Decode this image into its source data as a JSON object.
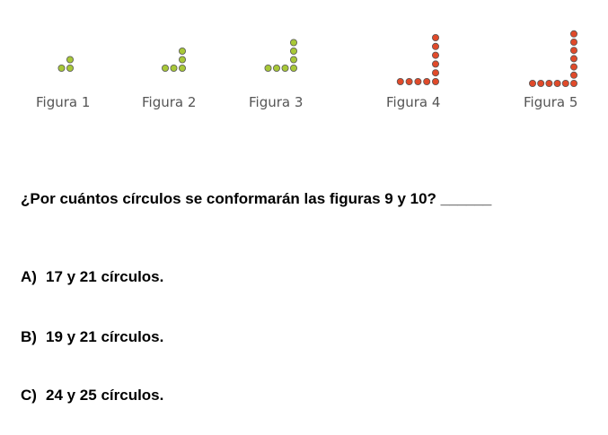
{
  "figures": [
    {
      "label": "Figura 1",
      "horizontal": 2,
      "vertical": 1,
      "color": "#a8c838"
    },
    {
      "label": "Figura 2",
      "horizontal": 3,
      "vertical": 2,
      "color": "#a8c838"
    },
    {
      "label": "Figura 3",
      "horizontal": 4,
      "vertical": 3,
      "color": "#a8c838"
    },
    {
      "label": "Figura 4",
      "horizontal": 5,
      "vertical": 5,
      "color": "#e04a2a"
    },
    {
      "label": "Figura 5",
      "horizontal": 6,
      "vertical": 6,
      "color": "#e04a2a"
    }
  ],
  "question": "¿Por cuántos círculos se conformarán las figuras 9 y 10? ______",
  "options": [
    {
      "letter": "A)",
      "text": "17 y 21 círculos."
    },
    {
      "letter": "B)",
      "text": "19 y 21 círculos."
    },
    {
      "letter": "C)",
      "text": "24 y 25 círculos."
    }
  ]
}
